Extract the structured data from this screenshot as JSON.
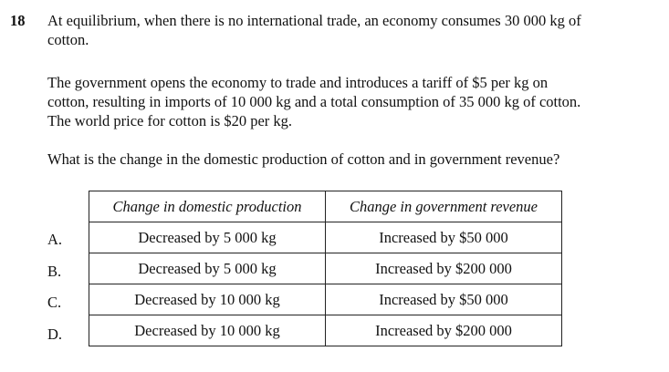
{
  "question": {
    "number": "18",
    "paragraph1_line1": "At equilibrium, when there is no international trade, an economy consumes 30 000 kg of",
    "paragraph1_line2": "cotton.",
    "paragraph2_line1": "The government opens the economy to trade and introduces a tariff of $5 per kg on",
    "paragraph2_line2": "cotton, resulting in imports of 10 000 kg and a total consumption of 35 000 kg of cotton.",
    "paragraph2_line3": "The world price for cotton is $20 per kg.",
    "prompt": "What is the change in the domestic production of cotton and in government revenue?"
  },
  "table": {
    "headers": [
      "Change in domestic production",
      "Change in government revenue"
    ],
    "rows": [
      {
        "option": "A.",
        "production": "Decreased by 5 000 kg",
        "revenue": "Increased by $50 000"
      },
      {
        "option": "B.",
        "production": "Decreased by 5 000 kg",
        "revenue": "Increased by $200 000"
      },
      {
        "option": "C.",
        "production": "Decreased by 10 000 kg",
        "revenue": "Increased by $50 000"
      },
      {
        "option": "D.",
        "production": "Decreased by 10 000 kg",
        "revenue": "Increased by $200 000"
      }
    ]
  }
}
